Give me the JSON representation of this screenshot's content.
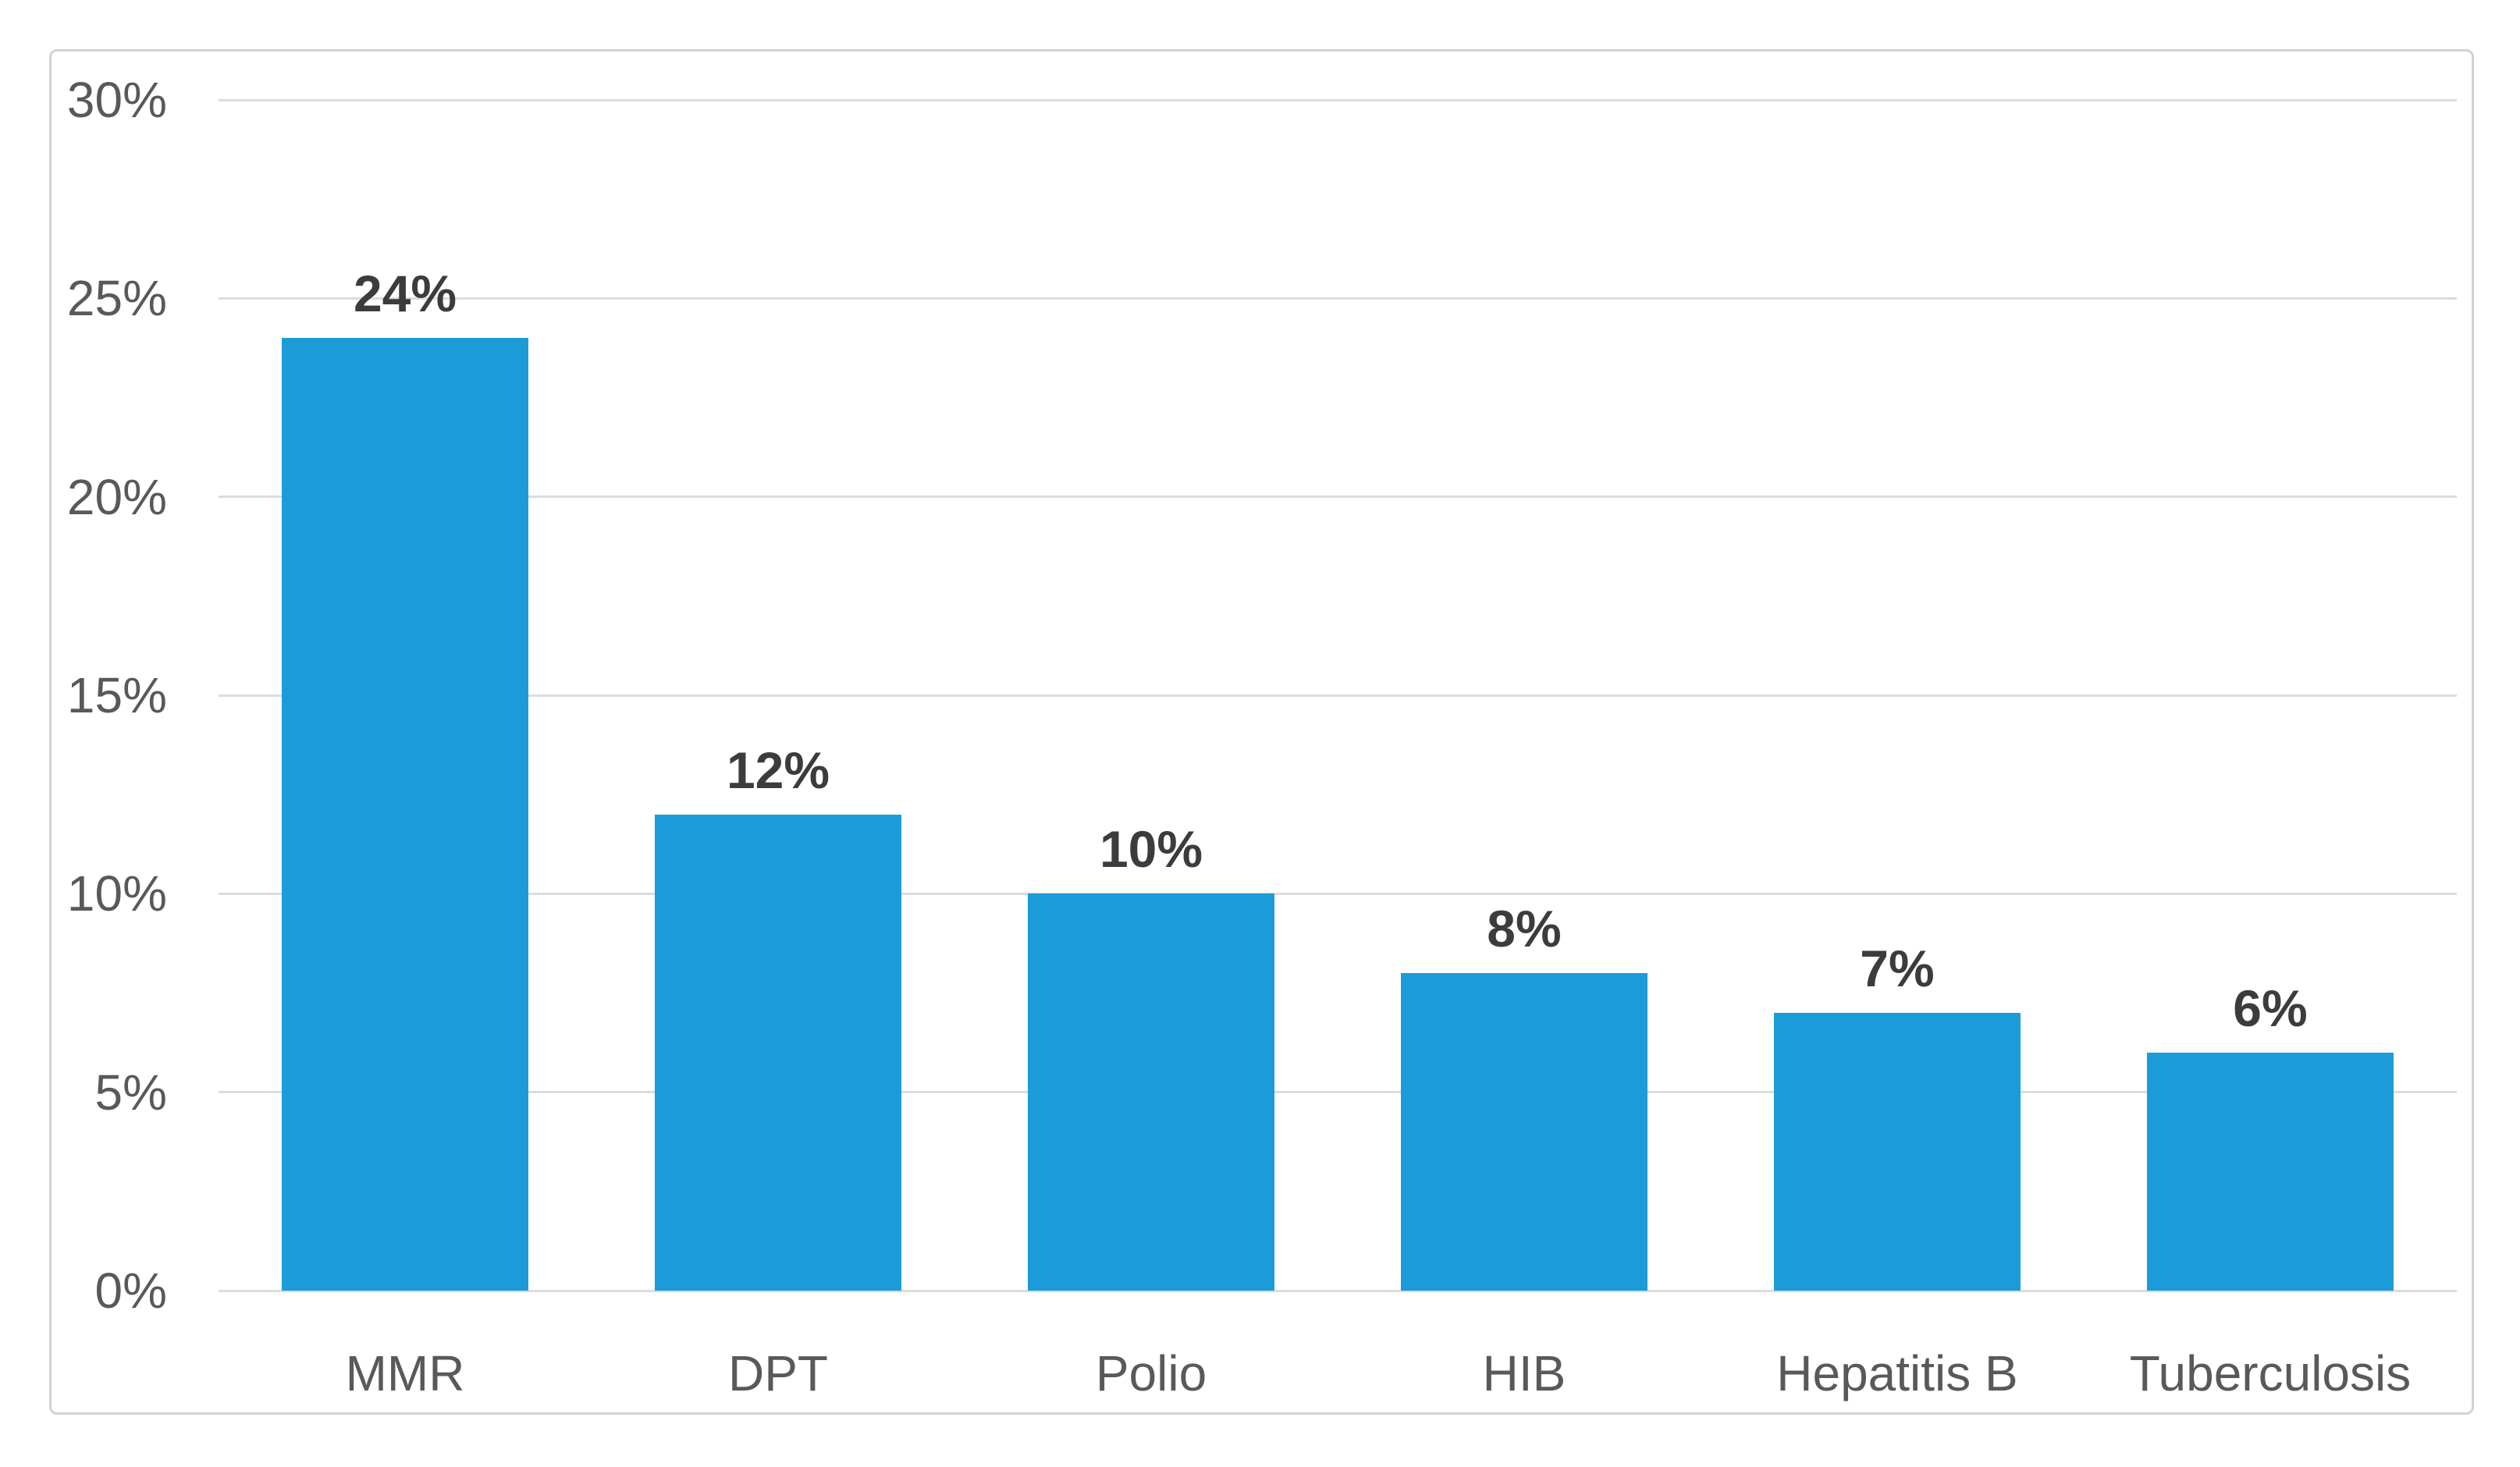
{
  "chart_data": {
    "type": "bar",
    "title": "",
    "xlabel": "",
    "ylabel": "",
    "categories": [
      "MMR",
      "DPT",
      "Polio",
      "HIB",
      "Hepatitis B",
      "Tuberculosis"
    ],
    "values": [
      24,
      12,
      10,
      8,
      7,
      6
    ],
    "value_labels": [
      "24%",
      "12%",
      "10%",
      "8%",
      "7%",
      "6%"
    ],
    "ylim": [
      0,
      30
    ],
    "y_ticks": [
      {
        "value": 30,
        "label": "30%"
      },
      {
        "value": 25,
        "label": "25%"
      },
      {
        "value": 20,
        "label": "20%"
      },
      {
        "value": 15,
        "label": "15%"
      },
      {
        "value": 10,
        "label": "10%"
      },
      {
        "value": 5,
        "label": "5%"
      },
      {
        "value": 0,
        "label": "0%"
      }
    ],
    "grid": true,
    "legend": "none",
    "colors": {
      "bar": "#1B9CD8",
      "gridline": "#DCDCDC",
      "axis_text": "#595959",
      "data_label_text": "#3C3C3C",
      "chart_border": "#D2D2D2",
      "background": "#FFFFFF"
    }
  }
}
